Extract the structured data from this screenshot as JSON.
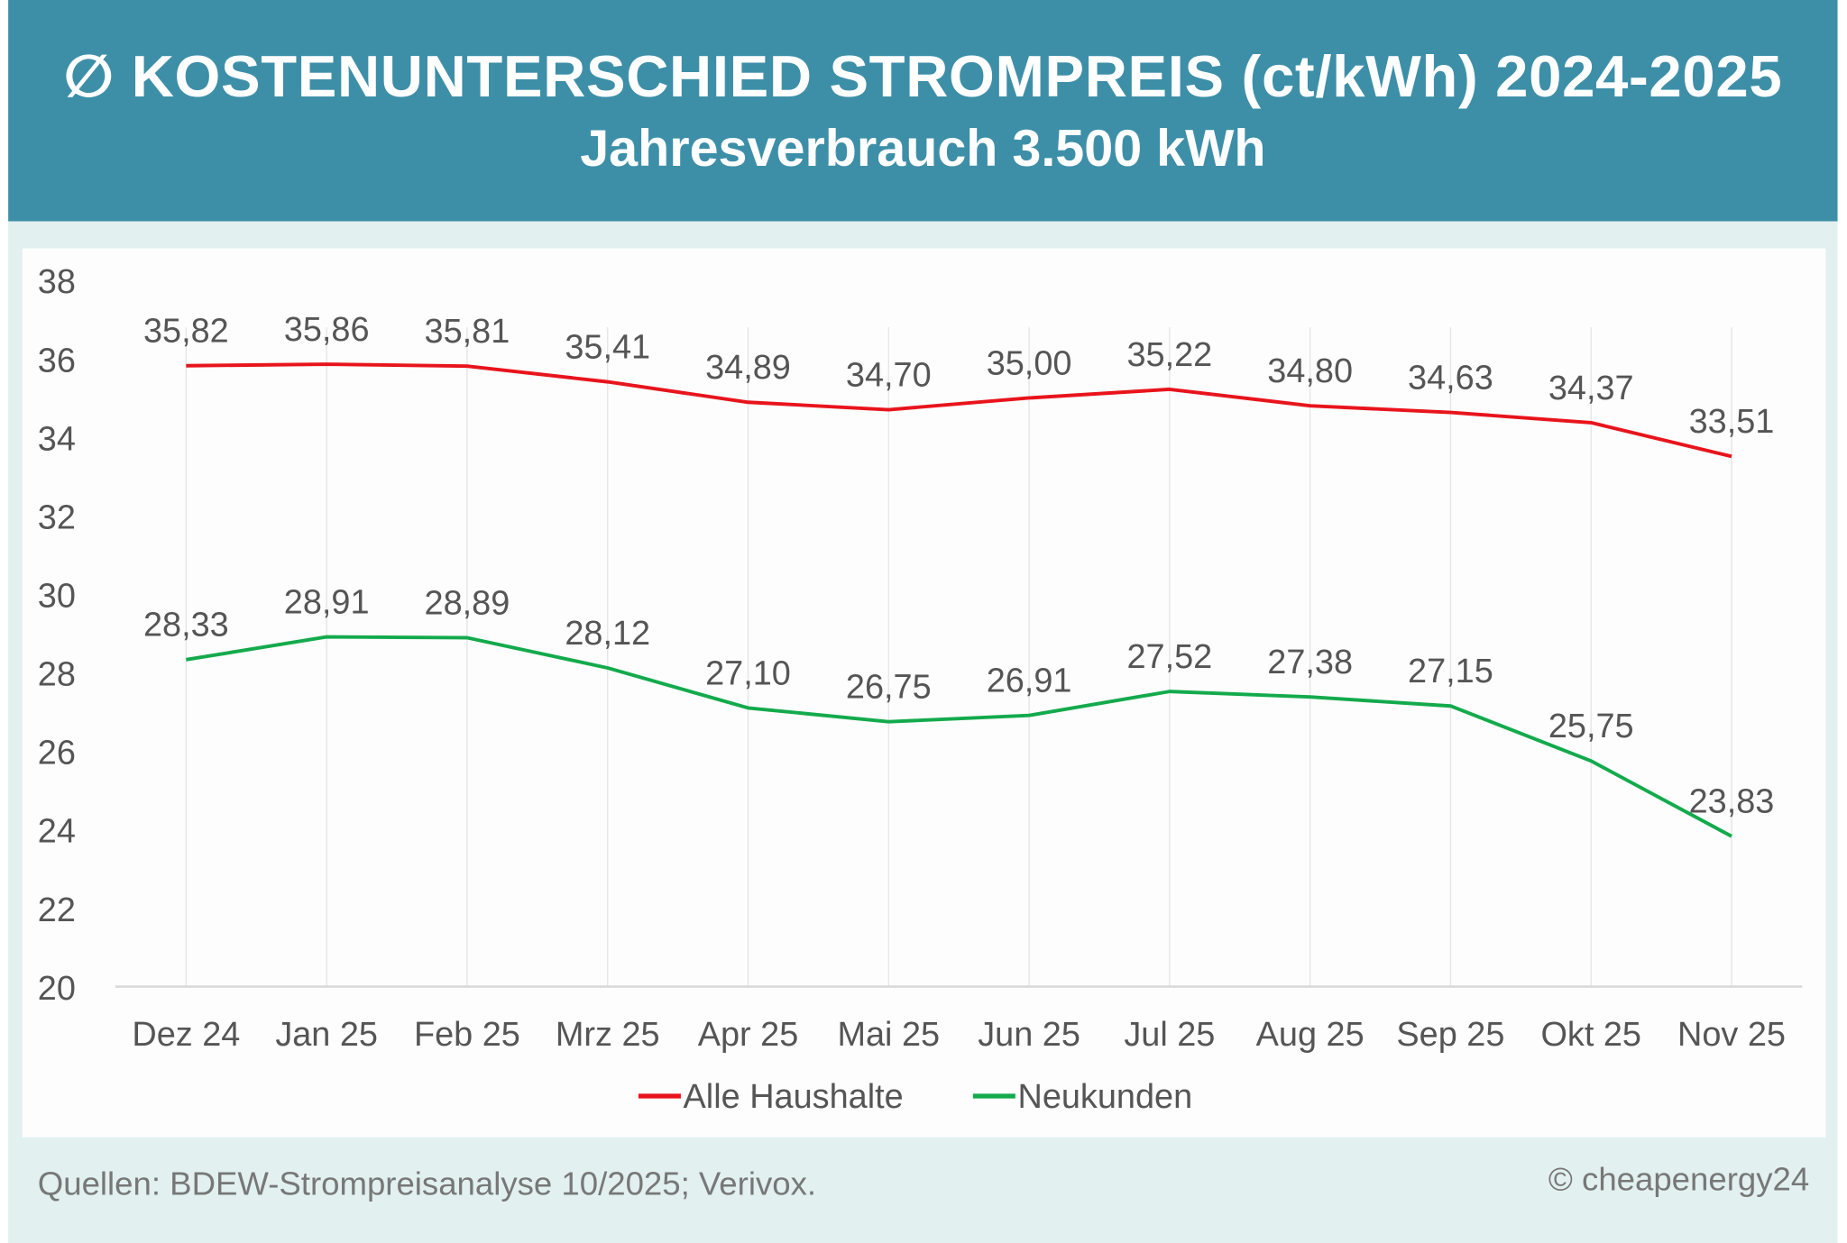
{
  "header": {
    "title": "∅ KOSTENUNTERSCHIED STROMPREIS (ct/kWh) 2024-2025",
    "subtitle": "Jahresverbrauch 3.500 kWh"
  },
  "footer": {
    "source": "Quellen: BDEW-Strompreisanalyse 10/2025; Verivox.",
    "copyright": "© cheapenergy24"
  },
  "chart_data": {
    "type": "line",
    "categories": [
      "Dez 24",
      "Jan 25",
      "Feb 25",
      "Mrz 25",
      "Apr 25",
      "Mai 25",
      "Jun 25",
      "Jul 25",
      "Aug 25",
      "Sep 25",
      "Okt 25",
      "Nov 25"
    ],
    "series": [
      {
        "name": "Alle Haushalte",
        "color": "#e8141c",
        "values": [
          35.82,
          35.86,
          35.81,
          35.41,
          34.89,
          34.7,
          35.0,
          35.22,
          34.8,
          34.63,
          34.37,
          33.51
        ],
        "labels": [
          "35,82",
          "35,86",
          "35,81",
          "35,41",
          "34,89",
          "34,70",
          "35,00",
          "35,22",
          "34,80",
          "34,63",
          "34,37",
          "33,51"
        ]
      },
      {
        "name": "Neukunden",
        "color": "#13aa4c",
        "values": [
          28.33,
          28.91,
          28.89,
          28.12,
          27.1,
          26.75,
          26.91,
          27.52,
          27.38,
          27.15,
          25.75,
          23.83
        ],
        "labels": [
          "28,33",
          "28,91",
          "28,89",
          "28,12",
          "27,10",
          "26,75",
          "26,91",
          "27,52",
          "27,38",
          "27,15",
          "25,75",
          "23,83"
        ]
      }
    ],
    "yticks": [
      "20",
      "22",
      "24",
      "26",
      "28",
      "30",
      "32",
      "34",
      "36",
      "38"
    ],
    "ylim": [
      20,
      38
    ],
    "grid": "vertical",
    "legend": "bottom",
    "xlabel": "",
    "ylabel": ""
  }
}
